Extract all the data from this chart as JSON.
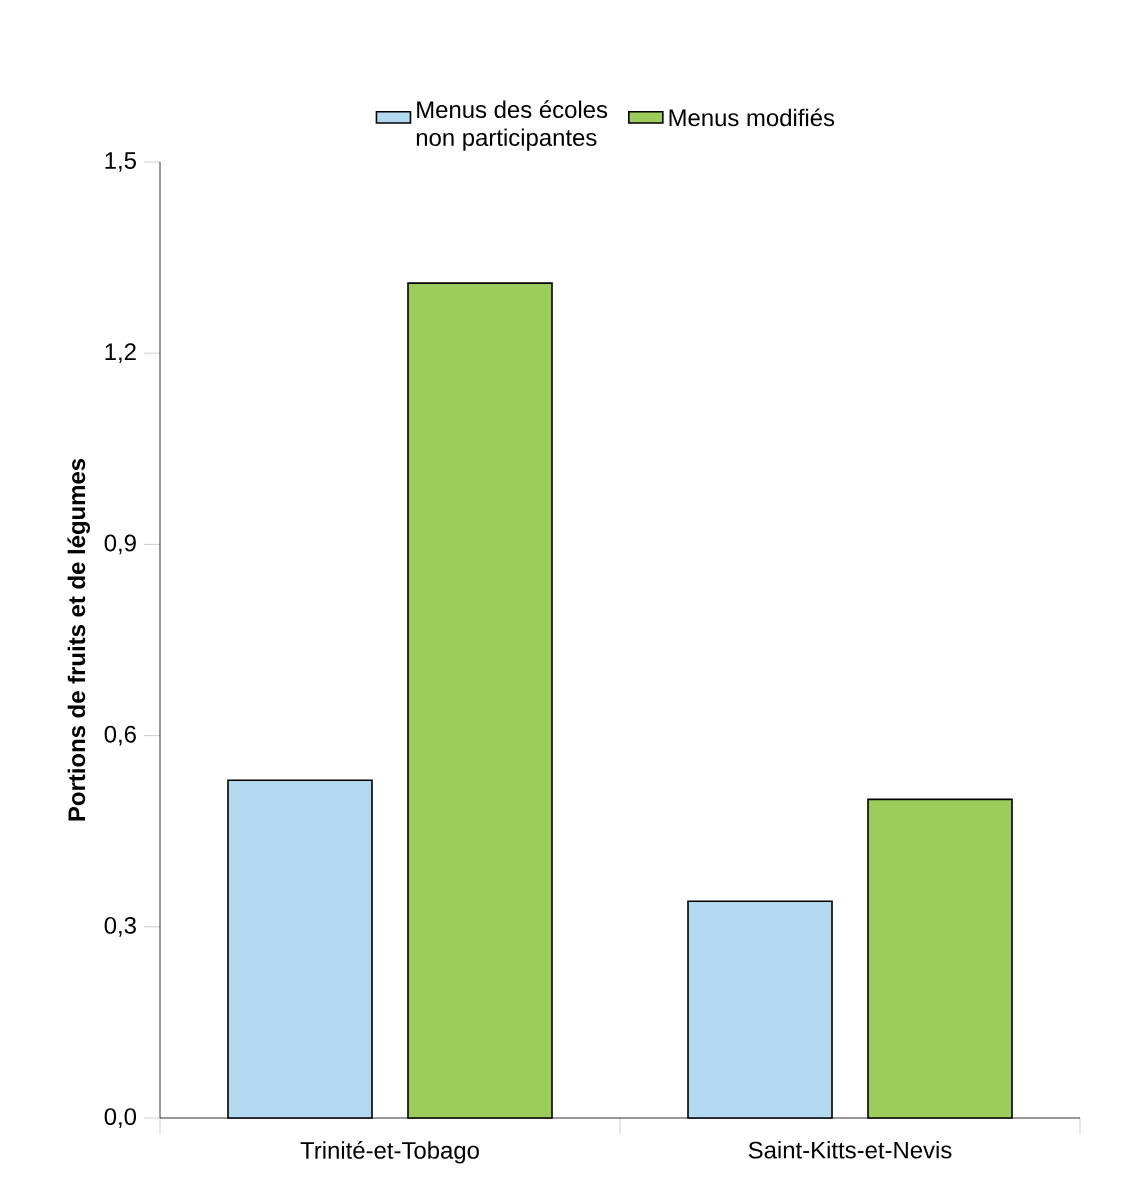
{
  "chart_data": {
    "type": "bar",
    "ylabel": "Portions de fruits et de légumes",
    "categories": [
      "Trinité-et-Tobago",
      "Saint-Kitts-et-Nevis"
    ],
    "series": [
      {
        "name": "Menus des écoles non participantes",
        "color": "#b3d9f0",
        "values": [
          0.53,
          0.34
        ]
      },
      {
        "name": "Menus modifiés",
        "color": "#9ccc5c",
        "values": [
          1.31,
          0.5
        ]
      }
    ],
    "ylim": [
      0,
      1.5
    ],
    "yticks": [
      {
        "value": 0,
        "label": "0,0"
      },
      {
        "value": 0.3,
        "label": "0,3"
      },
      {
        "value": 0.6,
        "label": "0,6"
      },
      {
        "value": 0.9,
        "label": "0,9"
      },
      {
        "value": 1.2,
        "label": "1,2"
      },
      {
        "value": 1.5,
        "label": "1,5"
      }
    ],
    "legend": "top"
  }
}
